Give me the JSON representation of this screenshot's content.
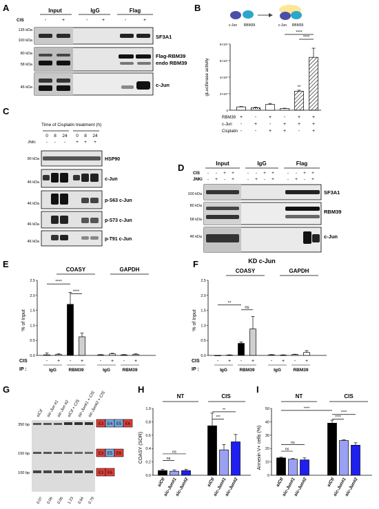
{
  "panels": {
    "A": {
      "letter": "A",
      "headers": [
        "Input",
        "IgG",
        "Flag"
      ],
      "cis_label": "CIS",
      "cis_signs": [
        "-",
        "+",
        "-",
        "+",
        "-",
        "+"
      ],
      "markers": [
        "135 kDa",
        "100 kDa",
        "80 kDa",
        "58 kDa",
        "46 kDa"
      ],
      "band_labels": [
        "SF3A1",
        "Flag-RBM39",
        "endo RBM39",
        "c-Jun"
      ]
    },
    "B": {
      "letter": "B",
      "cartoon_labels": [
        "c-Jun",
        "RBM39",
        "c-Jun",
        "RBM39"
      ],
      "ylabel": "gLuciferase activity",
      "yticks": [
        "0",
        "2×10⁴",
        "4×10⁴",
        "6×10⁴",
        "8×10⁴"
      ],
      "row_labels": [
        "RBM39",
        "c-Jun",
        "Cisplatin"
      ],
      "rows": [
        [
          "+",
          "-",
          "+",
          "-",
          "+",
          "+"
        ],
        [
          "-",
          "+",
          "-",
          "+",
          "+",
          "+"
        ],
        [
          "-",
          "-",
          "+",
          "+",
          "-",
          "+"
        ]
      ],
      "sig": [
        "**",
        "****",
        "****"
      ]
    },
    "C": {
      "letter": "C",
      "title": "Time of Cisplatin treatment (h)",
      "times": [
        "0",
        "8",
        "24",
        "0",
        "8",
        "24"
      ],
      "jnki_label": "JNKi",
      "jnki_signs": [
        "-",
        "-",
        "-",
        "+",
        "+",
        "+"
      ],
      "markers": [
        "90 kDa",
        "46 kDa",
        "46 kDa",
        "46 kDa",
        "46 kDa"
      ],
      "band_labels": [
        "HSP90",
        "c-Jun",
        "p-S63 c-Jun",
        "p-S73 c-Jun",
        "p-T91 c-Jun"
      ]
    },
    "D": {
      "letter": "D",
      "headers": [
        "Input",
        "IgG",
        "Flag"
      ],
      "cis_label": "CIS",
      "jnki_label": "JNKi",
      "cis_signs": [
        "-",
        "-",
        "+",
        "+",
        "-",
        "-",
        "+",
        "+",
        "-",
        "-",
        "+",
        "+"
      ],
      "jnki_signs": [
        "-",
        "+",
        "-",
        "+",
        "-",
        "+",
        "-",
        "+",
        "-",
        "+",
        "-",
        "+"
      ],
      "markers": [
        "100 kDa",
        "80 kDa",
        "58 kDa",
        "46 kDa"
      ],
      "band_labels": [
        "SF3A1",
        "RBM39",
        "c-Jun"
      ]
    },
    "E": {
      "letter": "E",
      "col_headers": [
        "COASY",
        "GAPDH"
      ],
      "ylabel": "% of Input",
      "yticks": [
        "0.0",
        "0.5",
        "1.0",
        "1.5",
        "2.0",
        "2.5"
      ],
      "cis_label": "CIS",
      "cis_signs": [
        "-",
        "+",
        "-",
        "+",
        "-",
        "+",
        "-",
        "+"
      ],
      "ip_label": "IP :",
      "ip_groups": [
        "IgG",
        "RBM39",
        "IgG",
        "RBM39"
      ],
      "sig": [
        "****",
        "****"
      ]
    },
    "F": {
      "letter": "F",
      "title": "KD c-Jun",
      "col_headers": [
        "COASY",
        "GAPDH"
      ],
      "ylabel": "% of Input",
      "yticks": [
        "0.0",
        "0.5",
        "1.0",
        "1.5",
        "2.0",
        "2.5"
      ],
      "cis_label": "CIS",
      "cis_signs": [
        "-",
        "+",
        "-",
        "+",
        "-",
        "+",
        "-",
        "+"
      ],
      "ip_label": "IP :",
      "ip_groups": [
        "IgG",
        "RBM39",
        "IgG",
        "RBM39"
      ],
      "sig": [
        "**",
        "ns"
      ]
    },
    "G": {
      "letter": "G",
      "lanes": [
        "siCtl",
        "sic-Jun #1",
        "sic-Jun #2",
        "siCtl + CIS",
        "sic-Jun#1 + CIS",
        "sic-Jun#2 + CIS"
      ],
      "markers": [
        "350 bp",
        "150 bp",
        "100 bp"
      ],
      "exons": [
        "E3",
        "E4",
        "E5",
        "E6"
      ],
      "ratios": [
        "0.07",
        "0.06",
        "0.06",
        "1.23",
        "0.84",
        "0.79"
      ]
    },
    "H": {
      "letter": "H",
      "group_labels": [
        "NT",
        "CIS"
      ],
      "ylabel": "COASY (SOR)",
      "yticks": [
        "0.0",
        "0.2",
        "0.4",
        "0.6",
        "0.8",
        "1.0"
      ],
      "xlabels": [
        "siCtl",
        "sic-Jun#1",
        "sic-Jun#2",
        "siCtl",
        "sic-Jun#1",
        "sic-Jun#2"
      ],
      "sig": [
        "ns",
        "ns",
        "***",
        "**"
      ]
    },
    "I": {
      "letter": "I",
      "group_labels": [
        "NT",
        "CIS"
      ],
      "ylabel": "Annexin V+ cells (%)",
      "yticks": [
        "0",
        "10",
        "20",
        "30",
        "40",
        "50"
      ],
      "xlabels": [
        "siCtl",
        "sic-Jun#1",
        "sic-Jun#2",
        "siCtl",
        "sic-Jun#1",
        "sic-Jun#2"
      ],
      "sig": [
        "****",
        "ns",
        "ns",
        "****",
        "****"
      ]
    }
  },
  "colors": {
    "black": "#000000",
    "light_blue": "#9aa0f2",
    "blue": "#1f1ff0",
    "gray": "#cfcfcf",
    "exon_red": "#e2403a",
    "exon_blue": "#7aa9dc"
  },
  "chart_data": [
    {
      "panel": "B",
      "type": "bar",
      "categories": [
        "1",
        "2",
        "3",
        "4",
        "5",
        "6"
      ],
      "values": [
        4000,
        3000,
        7000,
        2000,
        23000,
        64000
      ],
      "ylabel": "gLuciferase activity",
      "ylim": [
        0,
        80000
      ],
      "grid": false
    },
    {
      "panel": "E",
      "type": "bar",
      "categories": [
        "COASY IgG -",
        "COASY IgG +",
        "COASY RBM39 -",
        "COASY RBM39 +",
        "GAPDH IgG -",
        "GAPDH IgG +",
        "GAPDH RBM39 -",
        "GAPDH RBM39 +"
      ],
      "values": [
        0.02,
        0.03,
        1.7,
        0.62,
        0.02,
        0.05,
        0.02,
        0.03
      ],
      "ylabel": "% of Input",
      "ylim": [
        0,
        2.5
      ],
      "grid": false
    },
    {
      "panel": "F",
      "type": "bar",
      "categories": [
        "COASY IgG -",
        "COASY IgG +",
        "COASY RBM39 -",
        "COASY RBM39 +",
        "GAPDH IgG -",
        "GAPDH IgG +",
        "GAPDH RBM39 -",
        "GAPDH RBM39 +"
      ],
      "values": [
        0.0,
        0.01,
        0.4,
        0.88,
        0.02,
        0.01,
        0.03,
        0.1
      ],
      "ylabel": "% of Input",
      "ylim": [
        0,
        2.5
      ],
      "grid": false
    },
    {
      "panel": "H",
      "type": "bar",
      "categories": [
        "siCtl",
        "sic-Jun#1",
        "sic-Jun#2",
        "siCtl",
        "sic-Jun#1",
        "sic-Jun#2"
      ],
      "values": [
        0.07,
        0.06,
        0.07,
        0.74,
        0.38,
        0.5
      ],
      "ylabel": "COASY (SOR)",
      "ylim": [
        0,
        1.0
      ],
      "grid": false
    },
    {
      "panel": "I",
      "type": "bar",
      "categories": [
        "siCtl",
        "sic-Jun#1",
        "sic-Jun#2",
        "siCtl",
        "sic-Jun#1",
        "sic-Jun#2"
      ],
      "values": [
        13,
        12,
        11.5,
        39,
        26,
        22.5
      ],
      "ylabel": "Annexin V+ cells (%)",
      "ylim": [
        0,
        50
      ],
      "grid": false
    }
  ]
}
